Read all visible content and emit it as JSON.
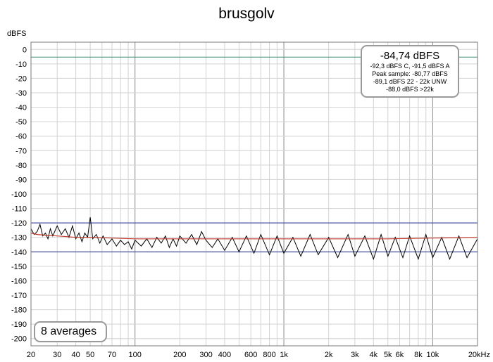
{
  "chart_data": {
    "type": "line",
    "title": "brusgolv",
    "ylabel": "dBFS",
    "xscale": "log",
    "xlim": [
      20,
      20000
    ],
    "ylim": [
      -205,
      5
    ],
    "grid": true,
    "y_ticks": [
      0,
      -10,
      -20,
      -30,
      -40,
      -50,
      -60,
      -70,
      -80,
      -90,
      -100,
      -110,
      -120,
      -130,
      -140,
      -150,
      -160,
      -170,
      -180,
      -190,
      -200
    ],
    "x_ticks": [
      {
        "value": 20,
        "label": "20"
      },
      {
        "value": 30,
        "label": "30"
      },
      {
        "value": 40,
        "label": "40"
      },
      {
        "value": 50,
        "label": "50"
      },
      {
        "value": 70,
        "label": "70"
      },
      {
        "value": 100,
        "label": "100"
      },
      {
        "value": 200,
        "label": "200"
      },
      {
        "value": 300,
        "label": "300"
      },
      {
        "value": 400,
        "label": "400"
      },
      {
        "value": 600,
        "label": "600"
      },
      {
        "value": 800,
        "label": "800"
      },
      {
        "value": 1000,
        "label": "1k"
      },
      {
        "value": 2000,
        "label": "2k"
      },
      {
        "value": 3000,
        "label": "3k"
      },
      {
        "value": 4000,
        "label": "4k"
      },
      {
        "value": 5000,
        "label": "5k"
      },
      {
        "value": 6000,
        "label": "6k"
      },
      {
        "value": 8000,
        "label": "8k"
      },
      {
        "value": 10000,
        "label": "10k"
      },
      {
        "value": 20000,
        "label": "20kHz"
      }
    ],
    "reference_lines": [
      {
        "value": -5.3,
        "color": "#3f8a6e"
      },
      {
        "value": -120,
        "color": "#1f2f8f"
      },
      {
        "value": -140,
        "color": "#1f2f8f"
      }
    ],
    "series": [
      {
        "color": "#000000",
        "x": [
          20,
          21,
          22,
          23,
          24,
          25,
          26,
          27,
          28,
          30,
          32,
          34,
          36,
          38,
          40,
          42,
          44,
          46,
          48,
          50,
          52,
          55,
          58,
          61,
          65,
          70,
          75,
          80,
          85,
          90,
          95,
          100,
          110,
          120,
          130,
          140,
          150,
          160,
          170,
          180,
          190,
          200,
          220,
          240,
          260,
          280,
          300,
          330,
          360,
          400,
          450,
          500,
          560,
          630,
          700,
          800,
          900,
          1000,
          1150,
          1300,
          1500,
          1700,
          2000,
          2300,
          2700,
          3000,
          3500,
          4000,
          4500,
          5000,
          5600,
          6300,
          7000,
          8000,
          9000,
          10000,
          11500,
          13000,
          15000,
          17000,
          20000
        ],
        "y": [
          -124,
          -128,
          -126,
          -121,
          -129,
          -127,
          -131,
          -124,
          -129,
          -122,
          -128,
          -124,
          -130,
          -122,
          -131,
          -127,
          -133,
          -127,
          -130,
          -116,
          -131,
          -128,
          -134,
          -129,
          -135,
          -131,
          -136,
          -132,
          -135,
          -133,
          -138,
          -132,
          -136,
          -131,
          -137,
          -130,
          -134,
          -129,
          -137,
          -131,
          -136,
          -129,
          -134,
          -128,
          -135,
          -126,
          -132,
          -137,
          -131,
          -139,
          -130,
          -140,
          -129,
          -141,
          -128,
          -142,
          -129,
          -141,
          -130,
          -143,
          -128,
          -142,
          -130,
          -144,
          -128,
          -143,
          -129,
          -145,
          -128,
          -143,
          -130,
          -144,
          -129,
          -145,
          -128,
          -144,
          -130,
          -145,
          -129,
          -144,
          -131
        ]
      },
      {
        "color": "#c0392b",
        "x": [
          20,
          22,
          25,
          30,
          35,
          40,
          50,
          70,
          100,
          200,
          500,
          1000,
          2000,
          5000,
          10000,
          20000
        ],
        "y": [
          -127,
          -128,
          -128.5,
          -129,
          -129.5,
          -130,
          -130,
          -130.5,
          -131,
          -131,
          -131,
          -131,
          -131,
          -131,
          -130.5,
          -130
        ]
      }
    ]
  },
  "info_box": {
    "main": "-84,74 dBFS",
    "lines": [
      "-92,3 dBFS C, -91,5 dBFS A",
      "Peak sample: -80,77 dBFS",
      "-89,1 dBFS 22 - 22k UNW",
      "-88,0 dBFS >22k"
    ]
  },
  "averages_label": "8 averages"
}
